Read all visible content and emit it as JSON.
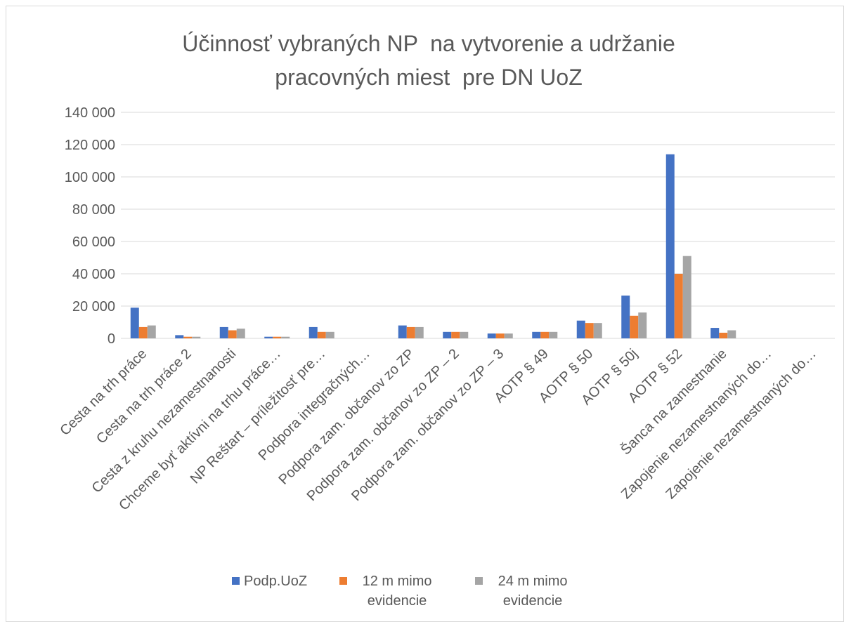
{
  "chart_data": {
    "type": "bar",
    "title": "Účinnosť vybraných NP  na vytvorenie a udržanie pracovných miest  pre DN UoZ",
    "categories": [
      "Cesta na trh práce",
      "Cesta na trh práce 2",
      "Cesta z kruhu nezamestnanosti",
      "Chceme byť aktívni na trhu práce…",
      "NP Reštart – príležitosť pre…",
      "Podpora integračných…",
      "Podpora zam. občanov zo ZP",
      "Podpora zam. občanov zo ZP – 2",
      "Podpora zam. občanov zo ZP – 3",
      "AOTP § 49",
      "AOTP § 50",
      "AOTP § 50j",
      "AOTP § 52",
      "Šanca na zamestnanie",
      "Zapojenie nezamestnaných do…",
      "Zapojenie nezamestnaných do…"
    ],
    "series": [
      {
        "name": "Podp.UoZ",
        "color": "#4472c4",
        "values": [
          19000,
          2000,
          7000,
          1000,
          7000,
          0,
          8000,
          4000,
          3000,
          4000,
          11000,
          26500,
          114000,
          6500,
          0,
          0
        ]
      },
      {
        "name": "12 m mimo evidencie",
        "color": "#ed7d31",
        "values": [
          7000,
          1000,
          5000,
          1000,
          4000,
          0,
          7000,
          4000,
          3000,
          4000,
          9500,
          14000,
          40000,
          3500,
          0,
          0
        ]
      },
      {
        "name": "24 m mimo evidencie",
        "color": "#a5a5a5",
        "values": [
          8000,
          1000,
          6000,
          1000,
          4000,
          0,
          7000,
          4000,
          3000,
          4000,
          9500,
          16000,
          51000,
          5000,
          0,
          0
        ]
      }
    ],
    "ylim": [
      0,
      140000
    ],
    "yticks": [
      0,
      {
        "value": 20000,
        "label": "20 000"
      },
      {
        "value": 40000,
        "label": "40 000"
      },
      {
        "value": 60000,
        "label": "60 000"
      },
      {
        "value": 80000,
        "label": "80 000"
      },
      {
        "value": 100000,
        "label": "100 000"
      },
      {
        "value": 120000,
        "label": "120 000"
      },
      {
        "value": 140000,
        "label": "140 000"
      }
    ],
    "grid": true
  }
}
